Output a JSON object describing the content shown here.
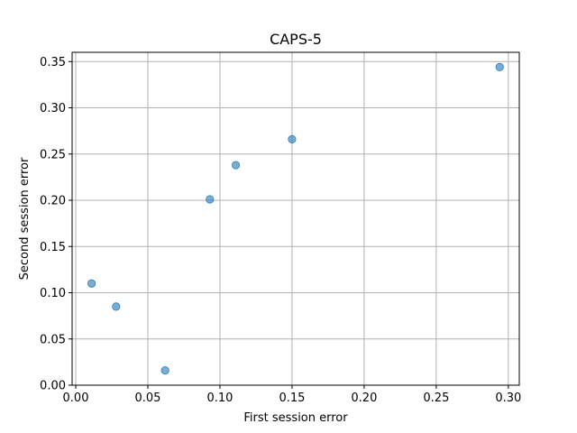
{
  "chart_data": {
    "type": "scatter",
    "title": "CAPS-5",
    "xlabel": "First session error",
    "ylabel": "Second session error",
    "xlim": [
      -0.0025,
      0.3076
    ],
    "ylim": [
      0.0,
      0.36
    ],
    "xticks": [
      0.0,
      0.05,
      0.1,
      0.15,
      0.2,
      0.25,
      0.3
    ],
    "xtick_labels": [
      "0.00",
      "0.05",
      "0.10",
      "0.15",
      "0.20",
      "0.25",
      "0.30"
    ],
    "yticks": [
      0.0,
      0.05,
      0.1,
      0.15,
      0.2,
      0.25,
      0.3,
      0.35
    ],
    "ytick_labels": [
      "0.00",
      "0.05",
      "0.10",
      "0.15",
      "0.20",
      "0.25",
      "0.30",
      "0.35"
    ],
    "grid": true,
    "marker_color": "#1f77b4",
    "marker_opacity": 0.6,
    "points": [
      {
        "x": 0.011,
        "y": 0.11
      },
      {
        "x": 0.028,
        "y": 0.085
      },
      {
        "x": 0.062,
        "y": 0.016
      },
      {
        "x": 0.093,
        "y": 0.201
      },
      {
        "x": 0.111,
        "y": 0.238
      },
      {
        "x": 0.15,
        "y": 0.266
      },
      {
        "x": 0.294,
        "y": 0.344
      }
    ]
  }
}
